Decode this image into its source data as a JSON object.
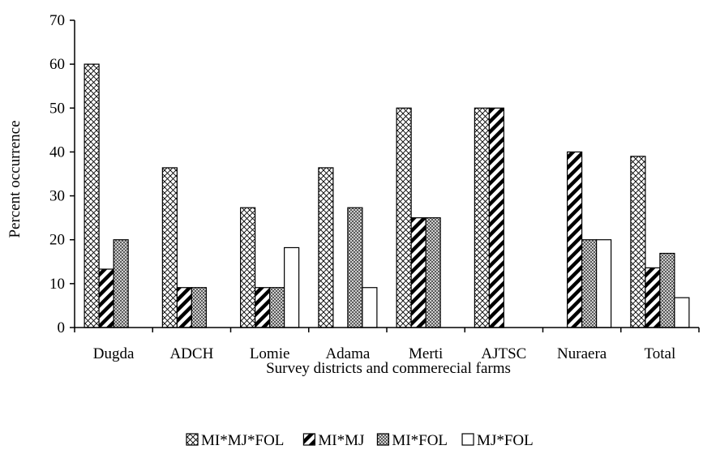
{
  "chart_data": {
    "type": "bar",
    "categories": [
      "Dugda",
      "ADCH",
      "Lomie",
      "Adama",
      "Merti",
      "AJTSC",
      "Nuraera",
      "Total"
    ],
    "series": [
      {
        "name": "MI*MJ*FOL",
        "pattern": "crosshatch",
        "values": [
          60,
          36.4,
          27.3,
          36.4,
          50,
          50,
          0,
          39
        ]
      },
      {
        "name": "MI*MJ",
        "pattern": "diagonal",
        "values": [
          13.3,
          9.1,
          9.1,
          0,
          25,
          50,
          40,
          13.6
        ]
      },
      {
        "name": "MI*FOL",
        "pattern": "dense-dots",
        "values": [
          20,
          9.1,
          9.1,
          27.3,
          25,
          0,
          20,
          16.9
        ]
      },
      {
        "name": "MJ*FOL",
        "pattern": "blank",
        "values": [
          0,
          0,
          18.2,
          9.1,
          0,
          0,
          20,
          6.8
        ]
      }
    ],
    "xlabel": "Survey districts and commerecial farms",
    "ylabel": "Percent occurrence",
    "ylim": [
      0,
      70
    ],
    "yticks": [
      "0",
      "10",
      "20",
      "30",
      "40",
      "50",
      "60",
      "70"
    ],
    "grid": false,
    "legend_position": "bottom",
    "colors": {
      "axis": "#000000",
      "bar_stroke": "#000000",
      "background": "#ffffff"
    }
  }
}
